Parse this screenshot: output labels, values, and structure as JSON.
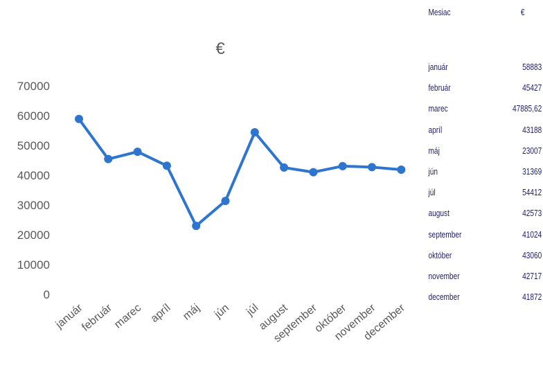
{
  "chart_data": {
    "type": "line",
    "title": "€",
    "categories": [
      "január",
      "február",
      "marec",
      "apríl",
      "máj",
      "jún",
      "júl",
      "august",
      "september",
      "október",
      "november",
      "december"
    ],
    "values": [
      58883,
      45427,
      47885.62,
      43188,
      23007,
      31369,
      54412,
      42573,
      41024,
      43060,
      42717,
      41872
    ],
    "ylim": [
      0,
      70000
    ],
    "yticks": [
      "0",
      "10000",
      "20000",
      "30000",
      "40000",
      "50000",
      "60000",
      "70000"
    ],
    "grid": false,
    "legend": "none",
    "color": "#2e75cf"
  },
  "table": {
    "header": {
      "month": "Mesiac",
      "value": "€"
    },
    "rows": [
      {
        "month": "január",
        "value": "58883"
      },
      {
        "month": "február",
        "value": "45427"
      },
      {
        "month": "marec",
        "value": "47885,62"
      },
      {
        "month": "apríl",
        "value": "43188"
      },
      {
        "month": "máj",
        "value": "23007"
      },
      {
        "month": "jún",
        "value": "31369"
      },
      {
        "month": "júl",
        "value": "54412"
      },
      {
        "month": "august",
        "value": "42573"
      },
      {
        "month": "september",
        "value": "41024"
      },
      {
        "month": "október",
        "value": "43060"
      },
      {
        "month": "november",
        "value": "42717"
      },
      {
        "month": "december",
        "value": "41872"
      }
    ]
  }
}
